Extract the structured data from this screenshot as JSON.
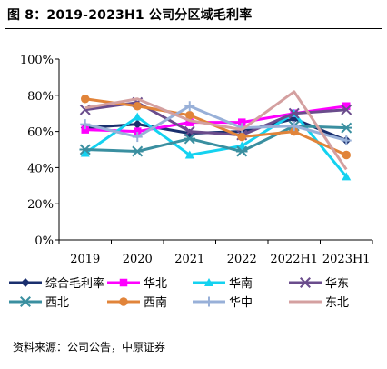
{
  "figure": {
    "title": "图 8：2019-2023H1 公司分区域毛利率",
    "source": "资料来源：公司公告，中原证券"
  },
  "chart_data": {
    "type": "line",
    "categories": [
      "2019",
      "2020",
      "2021",
      "2022",
      "2022H1",
      "2023H1"
    ],
    "ylim": [
      0,
      100
    ],
    "yticks": [
      "0%",
      "20%",
      "40%",
      "60%",
      "80%",
      "100%"
    ],
    "grid": false,
    "legend_position": "bottom",
    "series": [
      {
        "name": "综合毛利率",
        "values": [
          62,
          64,
          59,
          60,
          67,
          55
        ],
        "color": "#1a2f6e",
        "marker": "diamond"
      },
      {
        "name": "华北",
        "values": [
          61,
          60,
          65,
          65,
          70,
          74
        ],
        "color": "#ff00ff",
        "marker": "square"
      },
      {
        "name": "华南",
        "values": [
          48,
          68,
          47,
          52,
          70,
          35
        ],
        "color": "#14d2f0",
        "marker": "triangle"
      },
      {
        "name": "华东",
        "values": [
          72,
          76,
          60,
          58,
          70,
          72
        ],
        "color": "#6a4c8c",
        "marker": "star"
      },
      {
        "name": "西北",
        "values": [
          50,
          49,
          56,
          49,
          63,
          62
        ],
        "color": "#3a8fa0",
        "marker": "asterisk"
      },
      {
        "name": "西南",
        "values": [
          78,
          74,
          69,
          57,
          60,
          47
        ],
        "color": "#e1843a",
        "marker": "circle"
      },
      {
        "name": "华中",
        "values": [
          64,
          57,
          74,
          62,
          63,
          55
        ],
        "color": "#98b0d8",
        "marker": "plus"
      },
      {
        "name": "东北",
        "values": [
          73,
          78,
          66,
          61,
          82,
          39
        ],
        "color": "#d4a0a0",
        "marker": "none"
      }
    ]
  }
}
